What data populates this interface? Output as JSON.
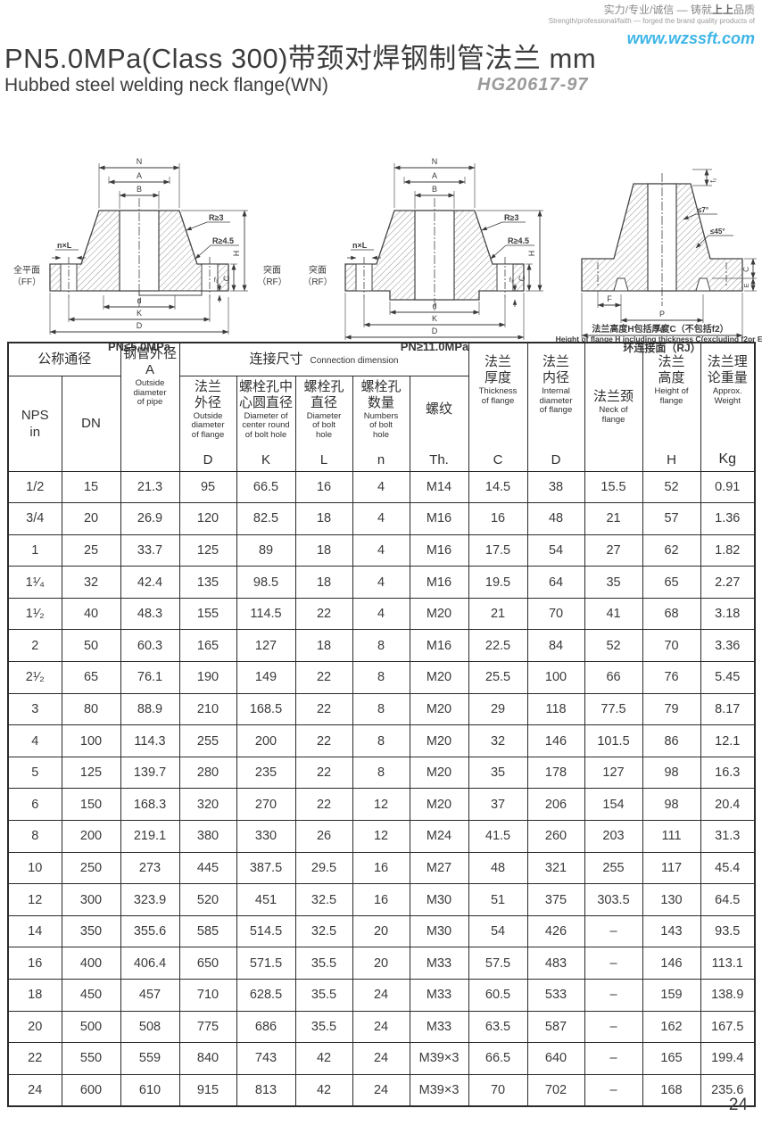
{
  "header": {
    "slogan_pre": "实力/专业/诚信 — 铸就",
    "slogan_brand": "上上",
    "slogan_post": "品质",
    "slogan_en": "Strength/professional/faith — forged the brand quality products of",
    "website": "www.wzssft.com",
    "title_cn": "PN5.0MPa(Class 300)带颈对焊钢制管法兰  mm",
    "subtitle_en": "Hubbed steel welding neck flange(WN)",
    "standard": "HG20617-97"
  },
  "diagrams": [
    {
      "caption": "PN≤5.0MPa",
      "face_left1": "全平面",
      "face_left2": "（FF）",
      "face_right1": "突面",
      "face_right2": "（RF）",
      "dim_n": "N",
      "dim_a": "A",
      "dim_b": "B",
      "dim_d_small": "d",
      "dim_k": "K",
      "dim_d_big": "D",
      "dim_h": "H",
      "dim_c": "C",
      "dim_f1": "f₁",
      "label_nxl": "n×L",
      "label_r3": "R≥3",
      "label_r45": "R≥4.5"
    },
    {
      "caption": "PN≥11.0MPa",
      "face_left1": "突面",
      "face_left2": "（RF）",
      "dim_n": "N",
      "dim_a": "A",
      "dim_b": "B",
      "dim_d_small": "d",
      "dim_k": "K",
      "dim_d_big": "D",
      "dim_h": "H",
      "dim_c": "C",
      "dim_f1": "f₁",
      "label_nxl": "n×L",
      "label_r3": "R≥3",
      "label_r45": "R≥4.5"
    },
    {
      "caption": "环连接面（RJ）",
      "note_cn": "法兰高度H包括厚度C（不包括f2）",
      "note_en": "Height of flange H including thickness C(excluding f2or E)",
      "dim_f2": "f₂",
      "angle1": "≤7°",
      "angle2": "≤45°",
      "dim_c": "C",
      "dim_e": "E",
      "dim_f": "F",
      "dim_p": "P",
      "dim_d": "d"
    }
  ],
  "table": {
    "group_nominal": "公称通径",
    "group_connection_cn": "连接尺寸",
    "group_connection_en": "Connection dimension",
    "nps_header": "NPS\nin",
    "dn_header": "DN",
    "pipe_col": {
      "cn": "钢管外径",
      "letter": "A",
      "en": "Outside\ndiameter\nof pipe"
    },
    "cols": [
      {
        "cn": "法兰\n外径",
        "en": "Outside\ndiameter\nof flange",
        "letter": "D"
      },
      {
        "cn": "螺栓孔中\n心圆直径",
        "en": "Diameter of\ncenter round\nof bolt hole",
        "letter": "K"
      },
      {
        "cn": "螺栓孔\n直径",
        "en": "Diameter\nof bolt\nhole",
        "letter": "L"
      },
      {
        "cn": "螺栓孔\n数量",
        "en": "Numbers\nof bolt\nhole",
        "letter": "n"
      },
      {
        "cn": "螺纹",
        "en": "",
        "letter": "Th."
      },
      {
        "cn": "法兰\n厚度",
        "en": "Thickness\nof flange",
        "letter": "C"
      },
      {
        "cn": "法兰\n内径",
        "en": "Internal\ndiameter\nof flange",
        "letter": "D"
      },
      {
        "cn": "法兰颈",
        "en": "Neck of\nflange",
        "letter": ""
      },
      {
        "cn": "法兰\n高度",
        "en": "Height of\nflange",
        "letter": "H"
      },
      {
        "cn": "法兰理\n论重量",
        "en": "Approx.\nWeight",
        "letter": "Kg"
      }
    ],
    "rows": [
      [
        "1/2",
        "15",
        "21.3",
        "95",
        "66.5",
        "16",
        "4",
        "M14",
        "14.5",
        "38",
        "15.5",
        "52",
        "0.91"
      ],
      [
        "3/4",
        "20",
        "26.9",
        "120",
        "82.5",
        "18",
        "4",
        "M16",
        "16",
        "48",
        "21",
        "57",
        "1.36"
      ],
      [
        "1",
        "25",
        "33.7",
        "125",
        "89",
        "18",
        "4",
        "M16",
        "17.5",
        "54",
        "27",
        "62",
        "1.82"
      ],
      [
        "1¹⁄₄",
        "32",
        "42.4",
        "135",
        "98.5",
        "18",
        "4",
        "M16",
        "19.5",
        "64",
        "35",
        "65",
        "2.27"
      ],
      [
        "1¹⁄₂",
        "40",
        "48.3",
        "155",
        "114.5",
        "22",
        "4",
        "M20",
        "21",
        "70",
        "41",
        "68",
        "3.18"
      ],
      [
        "2",
        "50",
        "60.3",
        "165",
        "127",
        "18",
        "8",
        "M16",
        "22.5",
        "84",
        "52",
        "70",
        "3.36"
      ],
      [
        "2¹⁄₂",
        "65",
        "76.1",
        "190",
        "149",
        "22",
        "8",
        "M20",
        "25.5",
        "100",
        "66",
        "76",
        "5.45"
      ],
      [
        "3",
        "80",
        "88.9",
        "210",
        "168.5",
        "22",
        "8",
        "M20",
        "29",
        "118",
        "77.5",
        "79",
        "8.17"
      ],
      [
        "4",
        "100",
        "114.3",
        "255",
        "200",
        "22",
        "8",
        "M20",
        "32",
        "146",
        "101.5",
        "86",
        "12.1"
      ],
      [
        "5",
        "125",
        "139.7",
        "280",
        "235",
        "22",
        "8",
        "M20",
        "35",
        "178",
        "127",
        "98",
        "16.3"
      ],
      [
        "6",
        "150",
        "168.3",
        "320",
        "270",
        "22",
        "12",
        "M20",
        "37",
        "206",
        "154",
        "98",
        "20.4"
      ],
      [
        "8",
        "200",
        "219.1",
        "380",
        "330",
        "26",
        "12",
        "M24",
        "41.5",
        "260",
        "203",
        "111",
        "31.3"
      ],
      [
        "10",
        "250",
        "273",
        "445",
        "387.5",
        "29.5",
        "16",
        "M27",
        "48",
        "321",
        "255",
        "117",
        "45.4"
      ],
      [
        "12",
        "300",
        "323.9",
        "520",
        "451",
        "32.5",
        "16",
        "M30",
        "51",
        "375",
        "303.5",
        "130",
        "64.5"
      ],
      [
        "14",
        "350",
        "355.6",
        "585",
        "514.5",
        "32.5",
        "20",
        "M30",
        "54",
        "426",
        "–",
        "143",
        "93.5"
      ],
      [
        "16",
        "400",
        "406.4",
        "650",
        "571.5",
        "35.5",
        "20",
        "M33",
        "57.5",
        "483",
        "–",
        "146",
        "113.1"
      ],
      [
        "18",
        "450",
        "457",
        "710",
        "628.5",
        "35.5",
        "24",
        "M33",
        "60.5",
        "533",
        "–",
        "159",
        "138.9"
      ],
      [
        "20",
        "500",
        "508",
        "775",
        "686",
        "35.5",
        "24",
        "M33",
        "63.5",
        "587",
        "–",
        "162",
        "167.5"
      ],
      [
        "22",
        "550",
        "559",
        "840",
        "743",
        "42",
        "24",
        "M39×3",
        "66.5",
        "640",
        "–",
        "165",
        "199.4"
      ],
      [
        "24",
        "600",
        "610",
        "915",
        "813",
        "42",
        "24",
        "M39×3",
        "70",
        "702",
        "–",
        "168",
        "235.6"
      ]
    ]
  },
  "page_number": "24"
}
